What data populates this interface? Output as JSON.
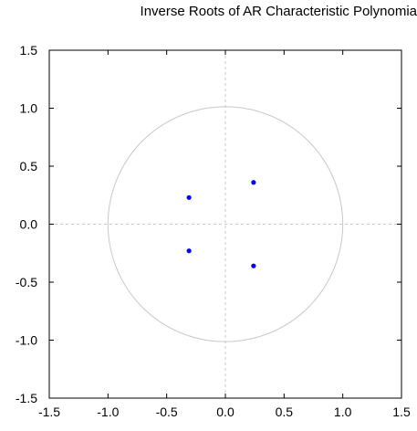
{
  "chart_data": {
    "type": "scatter",
    "title": "Inverse Roots of AR Characteristic Polynomia",
    "xlabel": "",
    "ylabel": "",
    "xlim": [
      -1.5,
      1.5
    ],
    "ylim": [
      -1.5,
      1.5
    ],
    "x_ticks": [
      "-1.5",
      "-1.0",
      "-0.5",
      "0.0",
      "0.5",
      "1.0",
      "1.5"
    ],
    "y_ticks": [
      "1.5",
      "1.0",
      "0.5",
      "0.0",
      "-0.5",
      "-1.0",
      "-1.5"
    ],
    "grid": false,
    "unit_circle": {
      "radius": 1.0,
      "color": "#c8c8c8"
    },
    "zero_lines": {
      "color": "#c8c8c8",
      "style": "dashed"
    },
    "series": [
      {
        "color": "#0000ff",
        "points": [
          {
            "x": -0.31,
            "y": 0.23
          },
          {
            "x": 0.24,
            "y": 0.36
          },
          {
            "x": -0.31,
            "y": -0.23
          },
          {
            "x": 0.24,
            "y": -0.36
          }
        ]
      }
    ]
  }
}
